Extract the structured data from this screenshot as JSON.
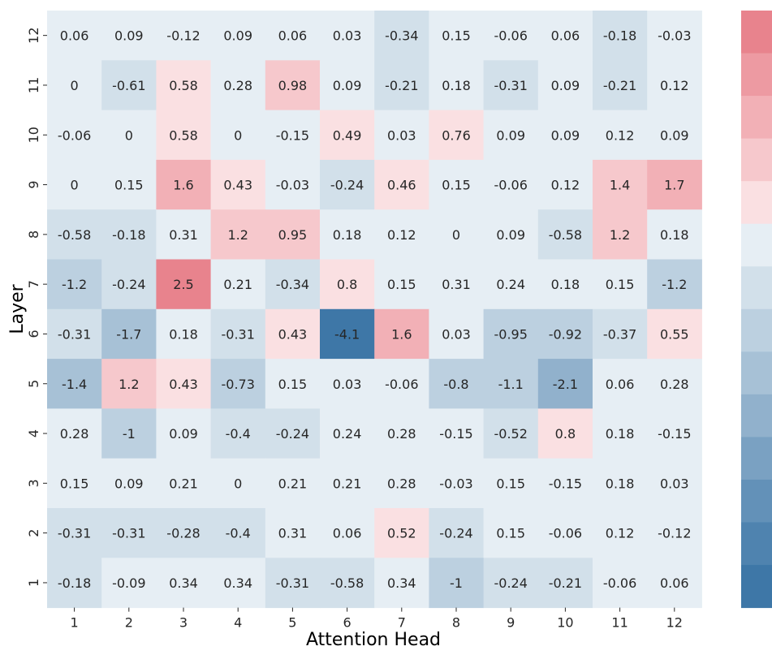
{
  "chart_data": {
    "type": "heatmap",
    "title": "",
    "xlabel": "Attention Head",
    "ylabel": "Layer",
    "x_categories": [
      "1",
      "2",
      "3",
      "4",
      "5",
      "6",
      "7",
      "8",
      "9",
      "10",
      "11",
      "12"
    ],
    "y_categories": [
      "12",
      "11",
      "10",
      "9",
      "8",
      "7",
      "6",
      "5",
      "4",
      "3",
      "2",
      "1"
    ],
    "values": [
      [
        "0.06",
        "0.09",
        "-0.12",
        "0.09",
        "0.06",
        "0.03",
        "-0.34",
        "0.15",
        "-0.06",
        "0.06",
        "-0.18",
        "-0.03"
      ],
      [
        "0",
        "-0.61",
        "0.58",
        "0.28",
        "0.98",
        "0.09",
        "-0.21",
        "0.18",
        "-0.31",
        "0.09",
        "-0.21",
        "0.12"
      ],
      [
        "-0.06",
        "0",
        "0.58",
        "0",
        "-0.15",
        "0.49",
        "0.03",
        "0.76",
        "0.09",
        "0.09",
        "0.12",
        "0.09"
      ],
      [
        "0",
        "0.15",
        "1.6",
        "0.43",
        "-0.03",
        "-0.24",
        "0.46",
        "0.15",
        "-0.06",
        "0.12",
        "1.4",
        "1.7"
      ],
      [
        "-0.58",
        "-0.18",
        "0.31",
        "1.2",
        "0.95",
        "0.18",
        "0.12",
        "0",
        "0.09",
        "-0.58",
        "1.2",
        "0.18"
      ],
      [
        "-1.2",
        "-0.24",
        "2.5",
        "0.21",
        "-0.34",
        "0.8",
        "0.15",
        "0.31",
        "0.24",
        "0.18",
        "0.15",
        "-1.2"
      ],
      [
        "-0.31",
        "-1.7",
        "0.18",
        "-0.31",
        "0.43",
        "-4.1",
        "1.6",
        "0.03",
        "-0.95",
        "-0.92",
        "-0.37",
        "0.55"
      ],
      [
        "-1.4",
        "1.2",
        "0.43",
        "-0.73",
        "0.15",
        "0.03",
        "-0.06",
        "-0.8",
        "-1.1",
        "-2.1",
        "0.06",
        "0.28"
      ],
      [
        "0.28",
        "-1",
        "0.09",
        "-0.4",
        "-0.24",
        "0.24",
        "0.28",
        "-0.15",
        "-0.52",
        "0.8",
        "0.18",
        "-0.15"
      ],
      [
        "0.15",
        "0.09",
        "0.21",
        "0",
        "0.21",
        "0.21",
        "0.28",
        "-0.03",
        "0.15",
        "-0.15",
        "0.18",
        "0.03"
      ],
      [
        "-0.31",
        "-0.31",
        "-0.28",
        "-0.4",
        "0.31",
        "0.06",
        "0.52",
        "-0.24",
        "0.15",
        "-0.06",
        "0.12",
        "-0.12"
      ],
      [
        "-0.18",
        "-0.09",
        "0.34",
        "0.34",
        "-0.31",
        "-0.58",
        "0.34",
        "-1",
        "-0.24",
        "-0.21",
        "-0.06",
        "0.06"
      ]
    ],
    "colormap": "diverging blue-white-red, 14 discrete steps",
    "color_low": "#4178aa",
    "color_high": "#e8838d",
    "color_range": [
      -4.4,
      3.0
    ],
    "colorbar_palette": [
      "#e8838d",
      "#ed9aa2",
      "#f2b0b6",
      "#f6c8cc",
      "#fae0e2",
      "#e6eef4",
      "#d2e0ea",
      "#bcd0e0",
      "#a7c1d6",
      "#91b1cc",
      "#7aa1c2",
      "#6391b8",
      "#4f83af",
      "#3e77a7"
    ],
    "grid": false,
    "legend": "colorbar-right"
  }
}
